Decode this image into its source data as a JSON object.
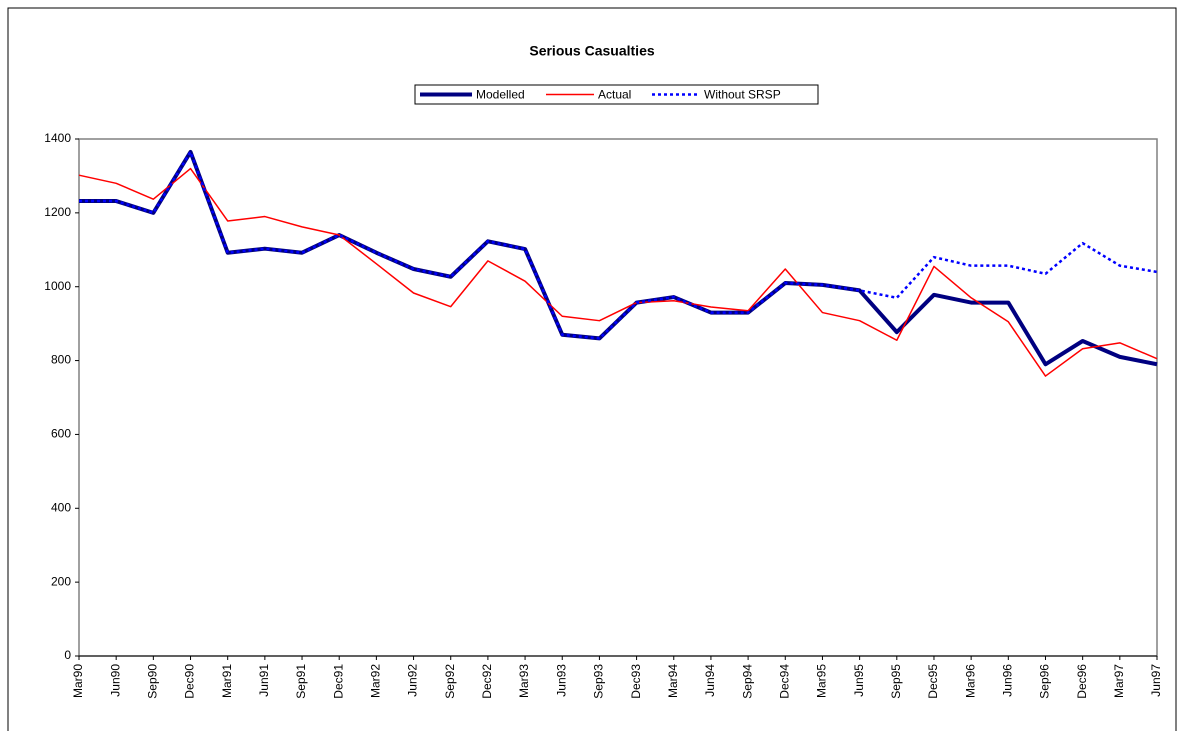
{
  "chart_data": {
    "type": "line",
    "title": "Serious Casualties",
    "categories": [
      "Mar90",
      "Jun90",
      "Sep90",
      "Dec90",
      "Mar91",
      "Jun91",
      "Sep91",
      "Dec91",
      "Mar92",
      "Jun92",
      "Sep92",
      "Dec92",
      "Mar93",
      "Jun93",
      "Sep93",
      "Dec93",
      "Mar94",
      "Jun94",
      "Sep94",
      "Dec94",
      "Mar95",
      "Jun95",
      "Sep95",
      "Dec95",
      "Mar96",
      "Jun96",
      "Sep96",
      "Dec96",
      "Mar97",
      "Jun97"
    ],
    "series": [
      {
        "name": "Modelled",
        "color": "#000080",
        "line_style": "solid",
        "line_width": 4,
        "values": [
          1232,
          1232,
          1200,
          1365,
          1092,
          1103,
          1092,
          1140,
          1092,
          1048,
          1027,
          1123,
          1102,
          870,
          860,
          957,
          972,
          930,
          930,
          1010,
          1005,
          990,
          877,
          978,
          957,
          957,
          790,
          853,
          810,
          790
        ]
      },
      {
        "name": "Actual",
        "color": "#ff0000",
        "line_style": "solid",
        "line_width": 1.5,
        "values": [
          1302,
          1280,
          1237,
          1320,
          1178,
          1190,
          1162,
          1140,
          1062,
          983,
          946,
          1070,
          1015,
          920,
          908,
          957,
          962,
          945,
          935,
          1048,
          930,
          908,
          855,
          1055,
          970,
          905,
          758,
          832,
          848,
          805
        ]
      },
      {
        "name": "Without SRSP",
        "color": "#0000ff",
        "line_style": "dotted",
        "line_width": 2.5,
        "values": [
          1232,
          1232,
          1200,
          1365,
          1092,
          1103,
          1092,
          1140,
          1092,
          1048,
          1027,
          1123,
          1102,
          870,
          860,
          957,
          972,
          930,
          930,
          1010,
          1005,
          990,
          970,
          1080,
          1057,
          1057,
          1035,
          1118,
          1057,
          1040
        ]
      }
    ],
    "ylim": [
      0,
      1400
    ],
    "yticks": [
      0,
      200,
      400,
      600,
      800,
      1000,
      1200,
      1400
    ],
    "grid": false,
    "legend": "top"
  }
}
